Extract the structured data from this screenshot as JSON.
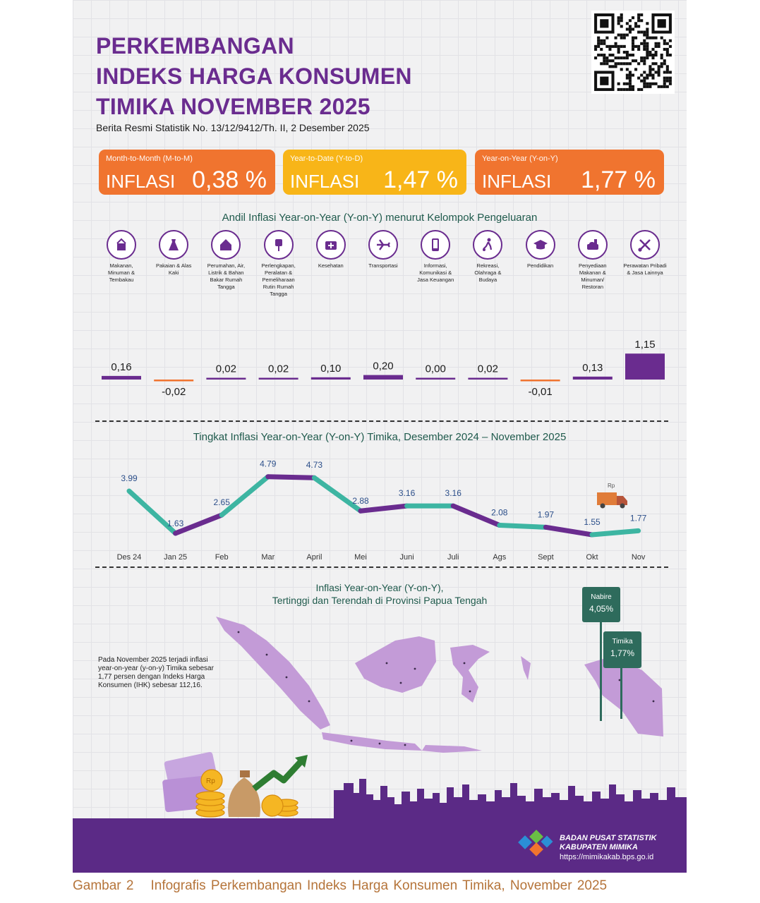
{
  "header": {
    "title_line1": "PERKEMBANGAN",
    "title_line2": "INDEKS HARGA KONSUMEN",
    "title_line3": "TIMIKA NOVEMBER 2025",
    "subtitle": "Berita Resmi Statistik No. 13/12/9412/Th. II, 2 Desember 2025"
  },
  "cards": [
    {
      "kind": "Month-to-Month (M-to-M)",
      "label": "INFLASI",
      "value": "0,38 %",
      "color": "#f0742f"
    },
    {
      "kind": "Year-to-Date (Y-to-D)",
      "label": "INFLASI",
      "value": "1,47 %",
      "color": "#f8b518"
    },
    {
      "kind": "Year-on-Year (Y-on-Y)",
      "label": "INFLASI",
      "value": "1,77 %",
      "color": "#f0742f"
    }
  ],
  "colors": {
    "purple": "#6a2c8f",
    "teal": "#3db5a2",
    "orange": "#f0742f",
    "yellow": "#f8b518",
    "dark_green": "#2e6b5c",
    "map": "#c39bd7"
  },
  "andil": {
    "title": "Andil Inflasi Year-on-Year (Y-on-Y) menurut Kelompok Pengeluaran",
    "categories": [
      {
        "name": "Makanan, Minuman & Tembakau",
        "icon": "food-basket-icon"
      },
      {
        "name": "Pakaian & Alas Kaki",
        "icon": "dress-icon"
      },
      {
        "name": "Perumahan, Air, Listrik & Bahan Bakar Rumah Tangga",
        "icon": "house-icon"
      },
      {
        "name": "Perlengkapan, Peralatan & Pemeliharaan Rutin Rumah Tangga",
        "icon": "appliance-plug-icon"
      },
      {
        "name": "Kesehatan",
        "icon": "medical-kit-icon"
      },
      {
        "name": "Transportasi",
        "icon": "airplane-icon"
      },
      {
        "name": "Informasi, Komunikasi & Jasa Keuangan",
        "icon": "smartphone-icon"
      },
      {
        "name": "Rekreasi, Olahraga & Budaya",
        "icon": "soccer-player-icon"
      },
      {
        "name": "Pendidikan",
        "icon": "graduation-cap-icon"
      },
      {
        "name": "Penyediaan Makanan & Minuman/ Restoran",
        "icon": "restaurant-meal-icon"
      },
      {
        "name": "Perawatan Pribadi & Jasa Lainnya",
        "icon": "scissors-comb-icon"
      }
    ]
  },
  "chart_data": [
    {
      "type": "bar",
      "title": "Andil Inflasi Year-on-Year (Y-on-Y) menurut Kelompok Pengeluaran",
      "categories": [
        "Makanan, Minuman & Tembakau",
        "Pakaian & Alas Kaki",
        "Perumahan, Air, Listrik & Bahan Bakar Rumah Tangga",
        "Perlengkapan, Peralatan & Pemeliharaan Rutin Rumah Tangga",
        "Kesehatan",
        "Transportasi",
        "Informasi, Komunikasi & Jasa Keuangan",
        "Rekreasi, Olahraga & Budaya",
        "Pendidikan",
        "Penyediaan Makanan & Minuman/ Restoran",
        "Perawatan Pribadi & Jasa Lainnya"
      ],
      "values": [
        0.16,
        -0.02,
        0.02,
        0.02,
        0.1,
        0.2,
        0.0,
        0.02,
        -0.01,
        0.13,
        1.15
      ],
      "labels": [
        "0,16",
        "-0,02",
        "0,02",
        "0,02",
        "0,10",
        "0,20",
        "0,00",
        "0,02",
        "-0,01",
        "0,13",
        "1,15"
      ]
    },
    {
      "type": "line",
      "title": "Tingkat Inflasi Year-on-Year (Y-on-Y) Timika, Desember 2024 – November 2025",
      "categories": [
        "Des 24",
        "Jan 25",
        "Feb",
        "Mar",
        "April",
        "Mei",
        "Juni",
        "Juli",
        "Ags",
        "Sept",
        "Okt",
        "Nov"
      ],
      "values": [
        3.99,
        1.63,
        2.65,
        4.79,
        4.73,
        2.88,
        3.16,
        3.16,
        2.08,
        1.97,
        1.55,
        1.77
      ],
      "labels": [
        "3.99",
        "1.63",
        "2.65",
        "4.79",
        "4.73",
        "2.88",
        "3.16",
        "3.16",
        "2.08",
        "1.97",
        "1.55",
        "1.77"
      ],
      "segment_colors": [
        "#3db5a2",
        "#6a2c8f",
        "#3db5a2",
        "#6a2c8f",
        "#3db5a2",
        "#6a2c8f",
        "#3db5a2",
        "#6a2c8f",
        "#3db5a2",
        "#6a2c8f",
        "#3db5a2"
      ]
    }
  ],
  "trend": {
    "title": "Tingkat Inflasi Year-on-Year (Y-on-Y) Timika, Desember 2024 – November 2025",
    "truck_label": "Rp"
  },
  "map": {
    "title_line1": "Inflasi Year-on-Year (Y-on-Y),",
    "title_line2": "Tertinggi dan Terendah di Provinsi Papua Tengah",
    "callouts": [
      {
        "name": "Nabire",
        "value": "4,05%"
      },
      {
        "name": "Timika",
        "value": "1,77%"
      }
    ],
    "note": "Pada November 2025 terjadi inflasi year-on-year (y-on-y) Timika sebesar 1,77 persen dengan Indeks Harga Konsumen (IHK) sebesar 112,16."
  },
  "illustration": {
    "coin_label": "Rp"
  },
  "footer": {
    "org_line1": "BADAN PUSAT STATISTIK",
    "org_line2": "KABUPATEN MIMIKA",
    "url": "https://mimikakab.bps.go.id"
  },
  "caption": {
    "number": "Gambar 2",
    "text": "Infografis Perkembangan Indeks Harga Konsumen Timika, November 2025"
  }
}
